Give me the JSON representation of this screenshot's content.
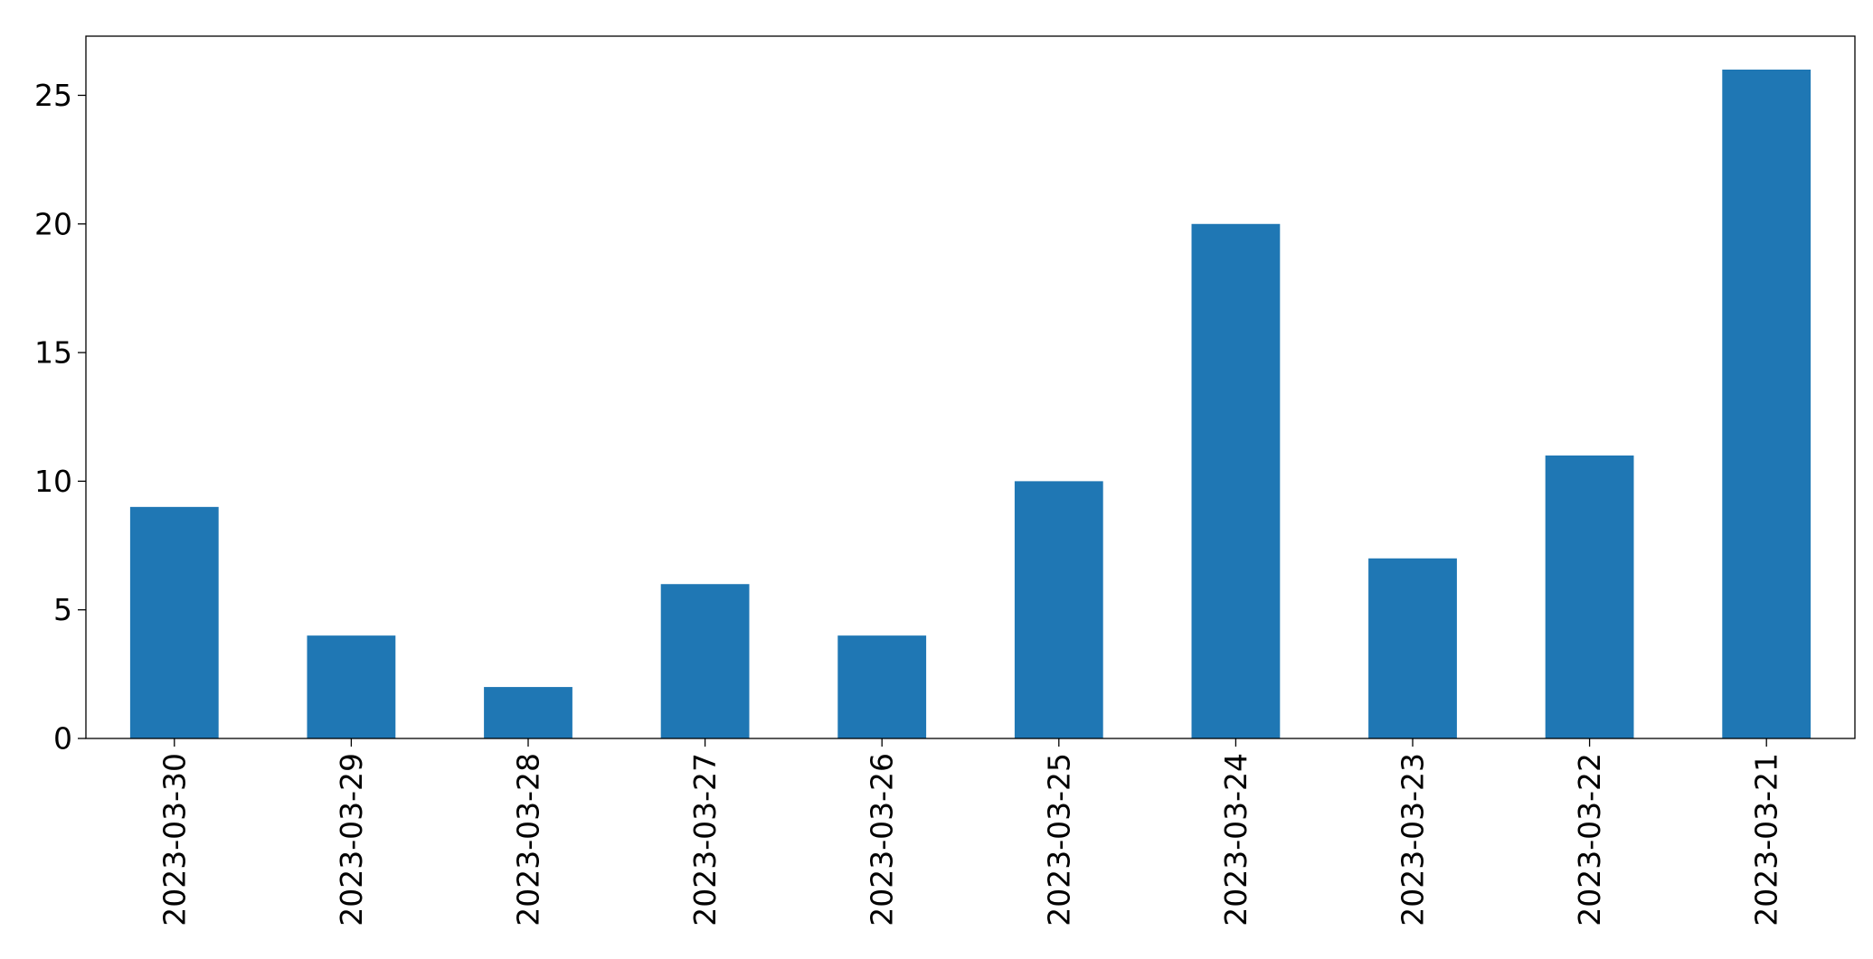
{
  "chart_data": {
    "type": "bar",
    "categories": [
      "2023-03-30",
      "2023-03-29",
      "2023-03-28",
      "2023-03-27",
      "2023-03-26",
      "2023-03-25",
      "2023-03-24",
      "2023-03-23",
      "2023-03-22",
      "2023-03-21"
    ],
    "values": [
      9,
      4,
      2,
      6,
      4,
      10,
      20,
      7,
      11,
      26
    ],
    "color": "#1f77b4",
    "ylim": [
      0,
      27.3
    ],
    "yticks": [
      0,
      5,
      10,
      15,
      20,
      25
    ],
    "grid": false
  }
}
